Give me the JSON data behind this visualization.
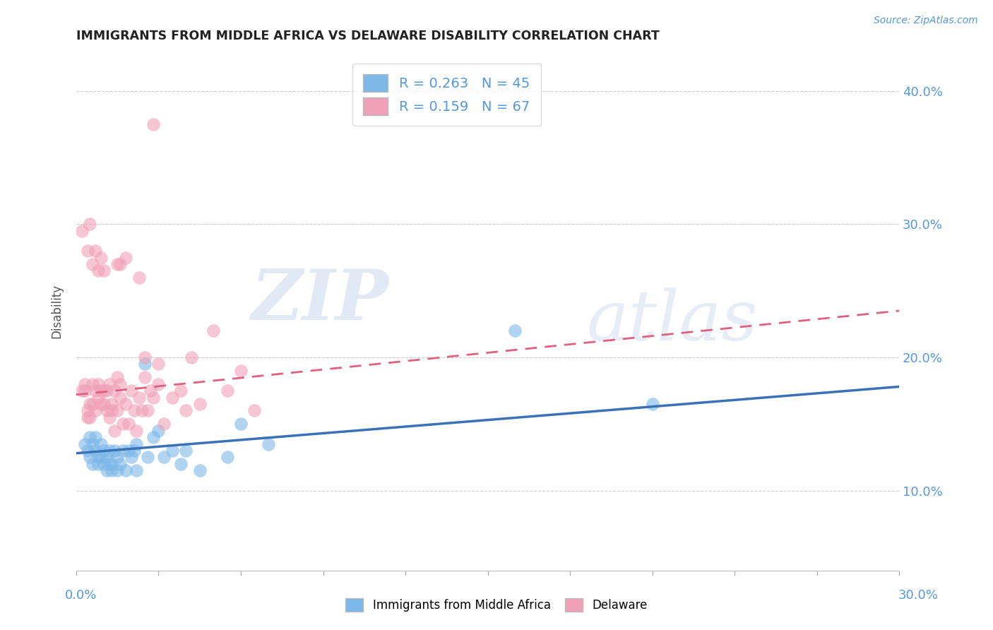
{
  "title": "IMMIGRANTS FROM MIDDLE AFRICA VS DELAWARE DISABILITY CORRELATION CHART",
  "source_text": "Source: ZipAtlas.com",
  "ylabel": "Disability",
  "ylabel_right_ticks": [
    "10.0%",
    "20.0%",
    "30.0%",
    "40.0%"
  ],
  "ylabel_right_tick_vals": [
    0.1,
    0.2,
    0.3,
    0.4
  ],
  "xlim": [
    0.0,
    0.3
  ],
  "ylim": [
    0.04,
    0.43
  ],
  "color_blue": "#7DB8E8",
  "color_blue_line": "#3A72B8",
  "color_pink": "#F0A0B8",
  "color_pink_line": "#E06080",
  "watermark_zip": "ZIP",
  "watermark_atlas": "atlas",
  "blue_scatter": [
    [
      0.003,
      0.135
    ],
    [
      0.004,
      0.13
    ],
    [
      0.005,
      0.14
    ],
    [
      0.005,
      0.125
    ],
    [
      0.006,
      0.135
    ],
    [
      0.006,
      0.12
    ],
    [
      0.007,
      0.13
    ],
    [
      0.007,
      0.14
    ],
    [
      0.008,
      0.125
    ],
    [
      0.008,
      0.12
    ],
    [
      0.009,
      0.125
    ],
    [
      0.009,
      0.135
    ],
    [
      0.01,
      0.13
    ],
    [
      0.01,
      0.12
    ],
    [
      0.011,
      0.125
    ],
    [
      0.011,
      0.115
    ],
    [
      0.012,
      0.12
    ],
    [
      0.012,
      0.13
    ],
    [
      0.013,
      0.115
    ],
    [
      0.013,
      0.12
    ],
    [
      0.014,
      0.13
    ],
    [
      0.015,
      0.125
    ],
    [
      0.015,
      0.115
    ],
    [
      0.016,
      0.12
    ],
    [
      0.017,
      0.13
    ],
    [
      0.018,
      0.115
    ],
    [
      0.019,
      0.13
    ],
    [
      0.02,
      0.125
    ],
    [
      0.021,
      0.13
    ],
    [
      0.022,
      0.115
    ],
    [
      0.022,
      0.135
    ],
    [
      0.025,
      0.195
    ],
    [
      0.026,
      0.125
    ],
    [
      0.028,
      0.14
    ],
    [
      0.03,
      0.145
    ],
    [
      0.032,
      0.125
    ],
    [
      0.035,
      0.13
    ],
    [
      0.038,
      0.12
    ],
    [
      0.04,
      0.13
    ],
    [
      0.045,
      0.115
    ],
    [
      0.055,
      0.125
    ],
    [
      0.06,
      0.15
    ],
    [
      0.07,
      0.135
    ],
    [
      0.16,
      0.22
    ],
    [
      0.21,
      0.165
    ]
  ],
  "pink_scatter": [
    [
      0.002,
      0.175
    ],
    [
      0.003,
      0.175
    ],
    [
      0.003,
      0.18
    ],
    [
      0.004,
      0.16
    ],
    [
      0.004,
      0.155
    ],
    [
      0.005,
      0.165
    ],
    [
      0.005,
      0.155
    ],
    [
      0.006,
      0.165
    ],
    [
      0.006,
      0.18
    ],
    [
      0.007,
      0.16
    ],
    [
      0.007,
      0.175
    ],
    [
      0.008,
      0.17
    ],
    [
      0.008,
      0.18
    ],
    [
      0.009,
      0.165
    ],
    [
      0.009,
      0.175
    ],
    [
      0.01,
      0.175
    ],
    [
      0.01,
      0.165
    ],
    [
      0.011,
      0.16
    ],
    [
      0.011,
      0.175
    ],
    [
      0.012,
      0.155
    ],
    [
      0.012,
      0.18
    ],
    [
      0.013,
      0.165
    ],
    [
      0.013,
      0.16
    ],
    [
      0.014,
      0.175
    ],
    [
      0.014,
      0.145
    ],
    [
      0.015,
      0.185
    ],
    [
      0.015,
      0.16
    ],
    [
      0.016,
      0.17
    ],
    [
      0.016,
      0.18
    ],
    [
      0.017,
      0.15
    ],
    [
      0.018,
      0.165
    ],
    [
      0.019,
      0.15
    ],
    [
      0.02,
      0.175
    ],
    [
      0.021,
      0.16
    ],
    [
      0.022,
      0.145
    ],
    [
      0.023,
      0.17
    ],
    [
      0.024,
      0.16
    ],
    [
      0.025,
      0.185
    ],
    [
      0.026,
      0.16
    ],
    [
      0.027,
      0.175
    ],
    [
      0.028,
      0.17
    ],
    [
      0.03,
      0.195
    ],
    [
      0.032,
      0.15
    ],
    [
      0.035,
      0.17
    ],
    [
      0.038,
      0.175
    ],
    [
      0.04,
      0.16
    ],
    [
      0.042,
      0.2
    ],
    [
      0.045,
      0.165
    ],
    [
      0.05,
      0.22
    ],
    [
      0.055,
      0.175
    ],
    [
      0.06,
      0.19
    ],
    [
      0.065,
      0.16
    ],
    [
      0.002,
      0.295
    ],
    [
      0.004,
      0.28
    ],
    [
      0.005,
      0.3
    ],
    [
      0.006,
      0.27
    ],
    [
      0.007,
      0.28
    ],
    [
      0.008,
      0.265
    ],
    [
      0.009,
      0.275
    ],
    [
      0.01,
      0.265
    ],
    [
      0.015,
      0.27
    ],
    [
      0.023,
      0.26
    ],
    [
      0.028,
      0.375
    ],
    [
      0.025,
      0.2
    ],
    [
      0.03,
      0.18
    ],
    [
      0.016,
      0.27
    ],
    [
      0.018,
      0.275
    ]
  ],
  "blue_line_x": [
    0.0,
    0.3
  ],
  "blue_line_y": [
    0.128,
    0.178
  ],
  "pink_line_x": [
    0.0,
    0.3
  ],
  "pink_line_y": [
    0.172,
    0.235
  ],
  "bg_color": "#FFFFFF",
  "grid_color": "#CCCCCC"
}
